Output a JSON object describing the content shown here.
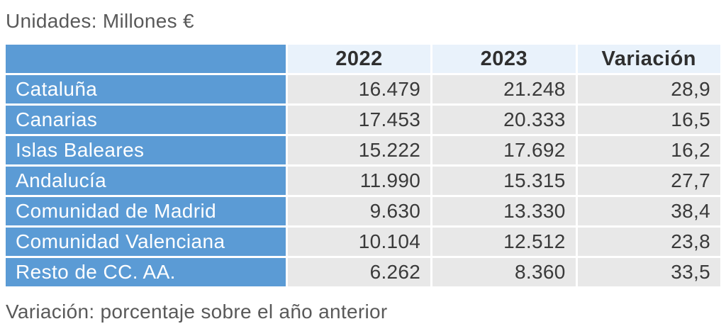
{
  "page": {
    "units_label": "Unidades: Millones €",
    "footnote": "Variación: porcentaje sobre el año anterior"
  },
  "chart_data": {
    "type": "table",
    "title": "Unidades: Millones €",
    "note": "Variación: porcentaje sobre el año anterior",
    "units": "Millones €",
    "columns": [
      "",
      "2022",
      "2023",
      "Variación"
    ],
    "rows": [
      {
        "region": "Cataluña",
        "y2022": "16.479",
        "y2023": "21.248",
        "variacion": "28,9"
      },
      {
        "region": "Canarias",
        "y2022": "17.453",
        "y2023": "20.333",
        "variacion": "16,5"
      },
      {
        "region": "Islas Baleares",
        "y2022": "15.222",
        "y2023": "17.692",
        "variacion": "16,2"
      },
      {
        "region": "Andalucía",
        "y2022": "11.990",
        "y2023": "15.315",
        "variacion": "27,7"
      },
      {
        "region": "Comunidad de Madrid",
        "y2022": "9.630",
        "y2023": "13.330",
        "variacion": "38,4"
      },
      {
        "region": "Comunidad Valenciana",
        "y2022": "10.104",
        "y2023": "12.512",
        "variacion": "23,8"
      },
      {
        "region": "Resto de CC. AA.",
        "y2022": "6.262",
        "y2023": "8.360",
        "variacion": "33,5"
      }
    ],
    "colors": {
      "accent_blue": "#5b9bd5",
      "header_bg": "#e9f2fb",
      "cell_bg": "#e8e8e8",
      "label_text": "#595959",
      "value_text": "#3a3a3a",
      "region_text": "#ffffff"
    },
    "layout": {
      "grid": "white 3px separators",
      "value_alignment": "right",
      "region_alignment": "left"
    }
  }
}
